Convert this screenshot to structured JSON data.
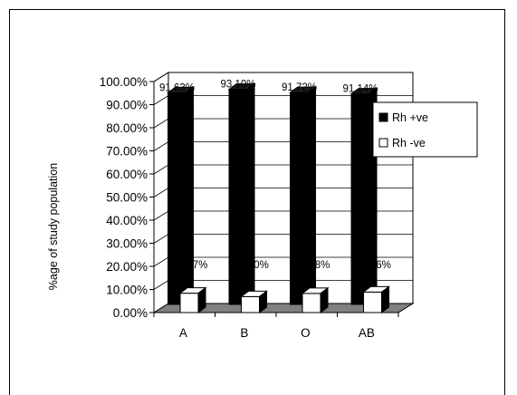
{
  "chart_data": {
    "type": "bar",
    "categories": [
      "A",
      "B",
      "O",
      "AB"
    ],
    "series": [
      {
        "name": "Rh +ve",
        "values": [
          91.63,
          93.1,
          91.72,
          91.14
        ],
        "labels": [
          "91.63%",
          "93.10%",
          "91.72%",
          "91.14%"
        ],
        "color": "#000000"
      },
      {
        "name": "Rh -ve",
        "values": [
          8.37,
          6.9,
          8.28,
          8.86
        ],
        "labels": [
          "8.37%",
          "6.90%",
          "8.28%",
          "8.86%"
        ],
        "color": "#ffffff"
      }
    ],
    "ylabel": "%age of study population",
    "xlabel": "",
    "ylim": [
      0,
      100
    ],
    "yticks": [
      "0.00%",
      "10.00%",
      "20.00%",
      "30.00%",
      "40.00%",
      "50.00%",
      "60.00%",
      "70.00%",
      "80.00%",
      "90.00%",
      "100.00%"
    ],
    "grid": true,
    "legend_position": "right",
    "floor_color": "#808080"
  }
}
